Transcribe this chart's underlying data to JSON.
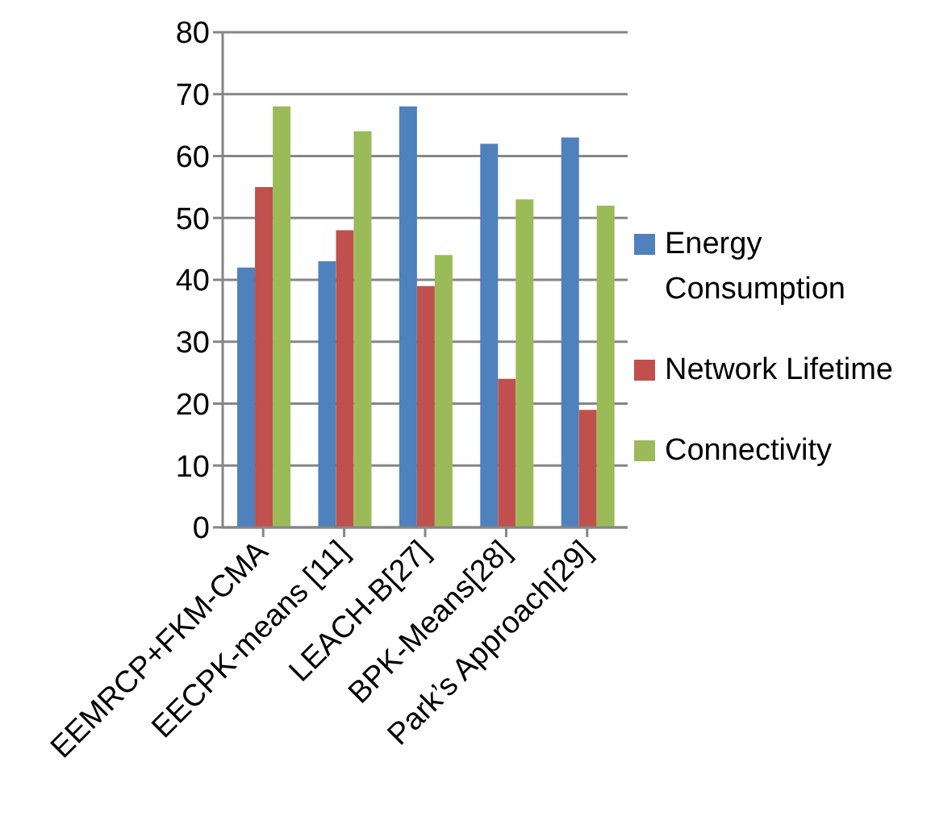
{
  "chart_data": {
    "type": "bar",
    "categories": [
      "EEMRCP+FKM-CMA",
      "EECPK-means [11]",
      "LEACH-B[27]",
      "BPK-Means[28]",
      "Park’s Approach[29]"
    ],
    "series": [
      {
        "name": "Energy Consumption",
        "color": "#4f81bd",
        "values": [
          42,
          43,
          68,
          62,
          63
        ]
      },
      {
        "name": "Network Lifetime",
        "color": "#c0504d",
        "values": [
          55,
          48,
          39,
          24,
          19
        ]
      },
      {
        "name": "Connectivity",
        "color": "#9bbb59",
        "values": [
          68,
          64,
          44,
          53,
          52
        ]
      }
    ],
    "ylim": [
      0,
      80
    ],
    "yticks": [
      0,
      10,
      20,
      30,
      40,
      50,
      60,
      70,
      80
    ],
    "grid": "y",
    "legend": "right"
  }
}
